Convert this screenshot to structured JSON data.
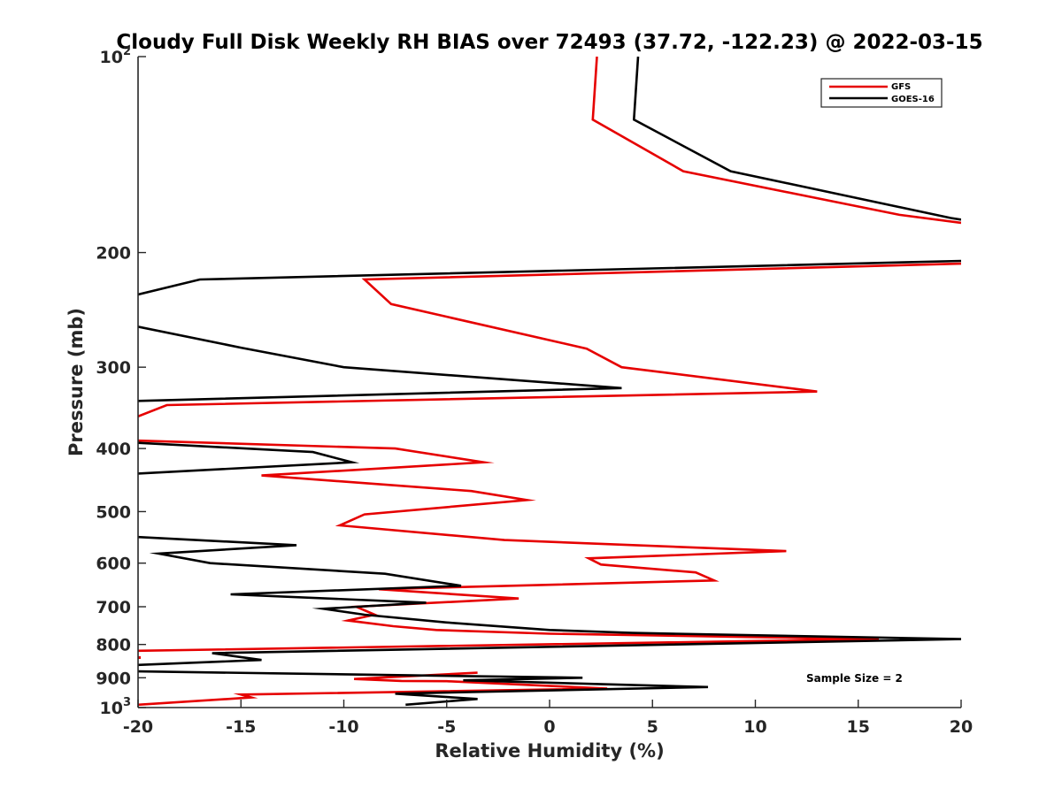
{
  "chart_data": {
    "type": "line",
    "title": "Cloudy Full Disk Weekly RH BIAS over 72493 (37.72, -122.23) @ 2022-03-15",
    "xlabel": "Relative Humidity (%)",
    "ylabel": "Pressure (mb)",
    "xlim": [
      -20,
      20
    ],
    "ylim": [
      100,
      1000
    ],
    "yscale": "log",
    "y_reversed": true,
    "grid": false,
    "legend_position": "top-right",
    "annotation": "Sample Size = 2",
    "x_ticks": [
      "-20",
      "-15",
      "-10",
      "-5",
      "0",
      "5",
      "10",
      "15",
      "20"
    ],
    "y_ticks": [
      {
        "value": 100,
        "label": "10",
        "sup": "2"
      },
      {
        "value": 200,
        "label": "200",
        "sup": ""
      },
      {
        "value": 300,
        "label": "300",
        "sup": ""
      },
      {
        "value": 400,
        "label": "400",
        "sup": ""
      },
      {
        "value": 500,
        "label": "500",
        "sup": ""
      },
      {
        "value": 600,
        "label": "600",
        "sup": ""
      },
      {
        "value": 700,
        "label": "700",
        "sup": ""
      },
      {
        "value": 800,
        "label": "800",
        "sup": ""
      },
      {
        "value": 900,
        "label": "900",
        "sup": ""
      },
      {
        "value": 1000,
        "label": "10",
        "sup": "3"
      }
    ],
    "series": [
      {
        "name": "GFS",
        "color": "#e60000",
        "points": [
          [
            2.3,
            100
          ],
          [
            2.1,
            125
          ],
          [
            6.5,
            150
          ],
          [
            17,
            175
          ],
          [
            20,
            180
          ],
          null,
          [
            20,
            208
          ],
          [
            -9,
            220
          ],
          [
            -7.7,
            240
          ],
          [
            1.8,
            281
          ],
          [
            3.5,
            300
          ],
          [
            13,
            327
          ],
          [
            -18.6,
            343
          ],
          [
            -20,
            357
          ],
          null,
          [
            -20,
            389
          ],
          [
            -7.5,
            400
          ],
          [
            -3.2,
            420
          ],
          [
            -14,
            440
          ],
          [
            -3.8,
            465
          ],
          [
            -1.1,
            480
          ],
          [
            -9,
            505
          ],
          [
            -10.2,
            525
          ],
          [
            -2.2,
            553
          ],
          [
            11.5,
            575
          ],
          [
            1.9,
            590
          ],
          [
            2.5,
            603
          ],
          [
            7.1,
            620
          ],
          [
            8,
            638
          ],
          [
            -8.3,
            658
          ],
          [
            -1.5,
            680
          ],
          [
            -9.4,
            700
          ],
          [
            -8.5,
            720
          ],
          [
            -9.8,
            735
          ],
          [
            -7.6,
            750
          ],
          [
            -5.5,
            760
          ],
          [
            0,
            770
          ],
          [
            16,
            785
          ],
          [
            -20,
            818
          ],
          null,
          [
            -20,
            838
          ],
          null,
          [
            -3.5,
            884
          ],
          [
            -9.5,
            904
          ],
          [
            -7.2,
            910
          ],
          [
            -5,
            911
          ],
          [
            2.8,
            935
          ],
          [
            -15,
            955
          ],
          [
            -14.5,
            965
          ],
          [
            -20,
            990
          ]
        ]
      },
      {
        "name": "GOES-16",
        "color": "#000000",
        "points": [
          [
            4.3,
            100
          ],
          [
            4.1,
            125
          ],
          [
            8.8,
            150
          ],
          [
            19.5,
            177
          ],
          [
            20,
            178
          ],
          null,
          [
            20,
            206
          ],
          [
            -17,
            220
          ],
          [
            -20,
            232
          ],
          null,
          [
            -20,
            260
          ],
          [
            -15,
            280
          ],
          [
            -10,
            300
          ],
          [
            3.5,
            323
          ],
          [
            -20,
            338
          ],
          null,
          [
            -20,
            392
          ],
          [
            -11.5,
            405
          ],
          [
            -9.6,
            420
          ],
          [
            -20,
            437
          ],
          null,
          [
            -20,
            547
          ],
          [
            -12.3,
            563
          ],
          [
            -19,
            580
          ],
          [
            -16.5,
            600
          ],
          [
            -8,
            623
          ],
          [
            -4.3,
            650
          ],
          [
            -15.5,
            670
          ],
          [
            -6,
            690
          ],
          [
            -11,
            705
          ],
          [
            -9,
            720
          ],
          [
            -5,
            740
          ],
          [
            0,
            760
          ],
          [
            4,
            768
          ],
          [
            20,
            785
          ],
          [
            -16.4,
            825
          ],
          [
            -14,
            845
          ],
          [
            -20,
            860
          ],
          null,
          [
            -20,
            880
          ],
          [
            1.6,
            900
          ],
          [
            -4.2,
            908
          ],
          [
            7.7,
            930
          ],
          [
            -7.5,
            952
          ],
          [
            -3.5,
            970
          ],
          [
            -7,
            990
          ]
        ]
      }
    ]
  }
}
